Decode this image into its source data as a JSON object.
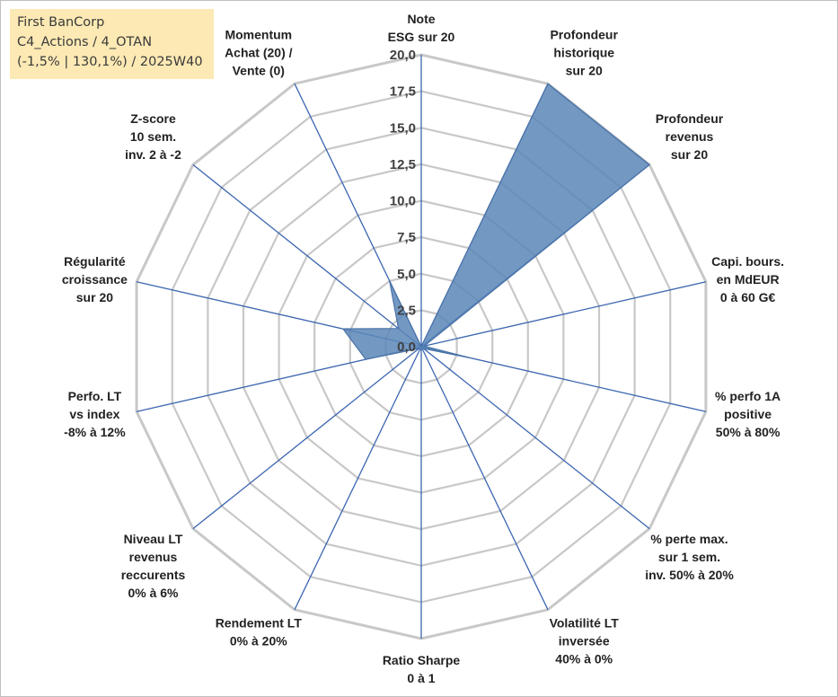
{
  "info": {
    "company": "First BanCorp",
    "path": "C4_Actions / 4_OTAN",
    "stats": "(-1,5% | 130,1%) / 2025W40"
  },
  "colors": {
    "fill": "#5b87b9",
    "stroke": "#4a72a8",
    "axis": "#3c66b0",
    "grid": "#c8c8c8"
  },
  "chart_data": {
    "type": "radar",
    "rmax": 20,
    "ticks": [
      "0,0",
      "2,5",
      "5,0",
      "7,5",
      "10,0",
      "12,5",
      "15,0",
      "17,5",
      "20,0"
    ],
    "axes": [
      {
        "label": [
          "Note",
          "ESG sur 20"
        ],
        "value": 0
      },
      {
        "label": [
          "Profondeur",
          "historique",
          "sur 20"
        ],
        "value": 20
      },
      {
        "label": [
          "Profondeur",
          "revenus",
          "sur 20"
        ],
        "value": 20
      },
      {
        "label": [
          "Capi. bours.",
          "en MdEUR",
          "0 à 60 G€"
        ],
        "value": 0.2
      },
      {
        "label": [
          "% perfo 1A",
          "positive",
          "50% à 80%"
        ],
        "value": 3.5
      },
      {
        "label": [
          "% perte max.",
          "sur 1 sem.",
          "inv. 50% à 20%"
        ],
        "value": 0.2
      },
      {
        "label": [
          "Volatilité LT",
          "inversée",
          "40% à 0%"
        ],
        "value": 0.2
      },
      {
        "label": [
          "Ratio Sharpe",
          "0 à 1"
        ],
        "value": 0.2
      },
      {
        "label": [
          "Rendement LT",
          "0% à 20%"
        ],
        "value": 0.2
      },
      {
        "label": [
          "Niveau LT",
          "revenus",
          "reccurents",
          "0% à 6%"
        ],
        "value": 0.2
      },
      {
        "label": [
          "Perfo. LT",
          "vs index",
          "-8% à 12%"
        ],
        "value": 3.9
      },
      {
        "label": [
          "Régularité",
          "croissance",
          "sur 20"
        ],
        "value": 5.5
      },
      {
        "label": [
          "Z-score",
          "10 sem.",
          "inv. 2 à -2"
        ],
        "value": 2.0
      },
      {
        "label": [
          "Momentum",
          "Achat (20) /",
          "Vente (0)"
        ],
        "value": 5.0
      }
    ]
  }
}
